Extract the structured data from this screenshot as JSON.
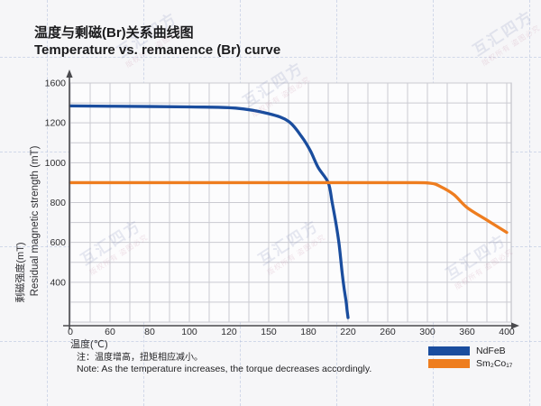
{
  "header": {
    "title_zh": "温度与剩磁(Br)关系曲线图",
    "title_en": "Temperature vs. remanence (Br) curve"
  },
  "watermark": {
    "big": "互汇四方",
    "small": "版权所有 盗图必究"
  },
  "chart_data": {
    "type": "line",
    "title": "Temperature vs. remanence (Br) curve",
    "xlabel": "温度(℃)",
    "ylabel_zh": "剩磁强度(mT)",
    "ylabel_en": "Residual magnetic strength (mT)",
    "x_ticks": [
      0,
      60,
      80,
      100,
      120,
      150,
      180,
      220,
      260,
      300,
      360,
      400
    ],
    "y_ticks": [
      0,
      400,
      600,
      800,
      1000,
      1200,
      1600
    ],
    "axis_note": "tick labels are equally spaced (non-linear scale)",
    "grid": true,
    "grid_color": "#cacad1",
    "panel_border_color": "#b8b8bf",
    "axis_color": "#4a4a4e",
    "legend_position": "bottom-right",
    "series": [
      {
        "name": "NdFeB",
        "color": "#1a4d9e",
        "points": [
          [
            0,
            1370
          ],
          [
            60,
            1367
          ],
          [
            100,
            1360
          ],
          [
            125,
            1348
          ],
          [
            150,
            1292
          ],
          [
            165,
            1215
          ],
          [
            175,
            1130
          ],
          [
            182,
            1060
          ],
          [
            190,
            975
          ],
          [
            200,
            900
          ],
          [
            204,
            800
          ],
          [
            208,
            690
          ],
          [
            211,
            590
          ],
          [
            214,
            450
          ],
          [
            216,
            340
          ],
          [
            218,
            210
          ],
          [
            219,
            120
          ],
          [
            220,
            45
          ]
        ]
      },
      {
        "name": "Sm₂Co₁₇",
        "color": "#ee7d1f",
        "points": [
          [
            0,
            900
          ],
          [
            100,
            900
          ],
          [
            200,
            900
          ],
          [
            280,
            900
          ],
          [
            305,
            897
          ],
          [
            320,
            880
          ],
          [
            340,
            840
          ],
          [
            360,
            775
          ],
          [
            380,
            712
          ],
          [
            400,
            650
          ]
        ]
      }
    ]
  },
  "footer": {
    "note_zh": "注：温度增高，扭矩相应减小。",
    "note_en": "Note: As the temperature increases, the torque decreases accordingly."
  }
}
